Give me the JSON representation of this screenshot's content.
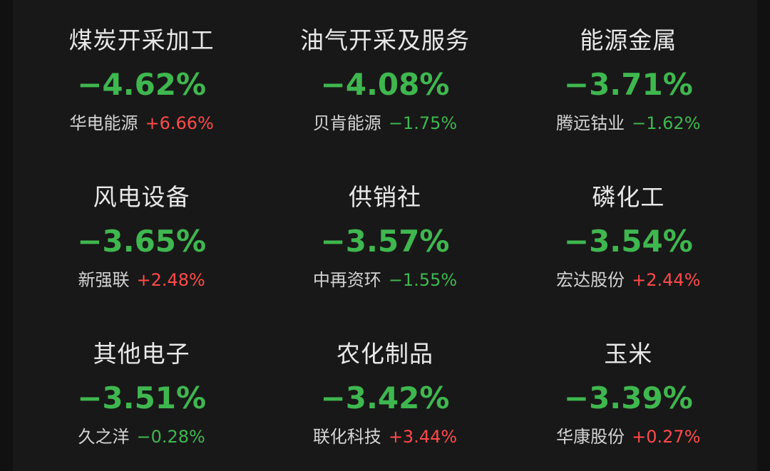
{
  "colors": {
    "background": "#181818",
    "rise": "#ff4a4a",
    "fall": "#3fb74f",
    "text": "#e8e8e8"
  },
  "sectors": [
    {
      "name": "煤炭开采加工",
      "change": "−4.62%",
      "stock": "华电能源",
      "stock_change": "+6.66%",
      "stock_dir": "up"
    },
    {
      "name": "油气开采及服务",
      "change": "−4.08%",
      "stock": "贝肯能源",
      "stock_change": "−1.75%",
      "stock_dir": "down"
    },
    {
      "name": "能源金属",
      "change": "−3.71%",
      "stock": "腾远钴业",
      "stock_change": "−1.62%",
      "stock_dir": "down"
    },
    {
      "name": "风电设备",
      "change": "−3.65%",
      "stock": "新强联",
      "stock_change": "+2.48%",
      "stock_dir": "up"
    },
    {
      "name": "供销社",
      "change": "−3.57%",
      "stock": "中再资环",
      "stock_change": "−1.55%",
      "stock_dir": "down"
    },
    {
      "name": "磷化工",
      "change": "−3.54%",
      "stock": "宏达股份",
      "stock_change": "+2.44%",
      "stock_dir": "up"
    },
    {
      "name": "其他电子",
      "change": "−3.51%",
      "stock": "久之洋",
      "stock_change": "−0.28%",
      "stock_dir": "down"
    },
    {
      "name": "农化制品",
      "change": "−3.42%",
      "stock": "联化科技",
      "stock_change": "+3.44%",
      "stock_dir": "up"
    },
    {
      "name": "玉米",
      "change": "−3.39%",
      "stock": "华康股份",
      "stock_change": "+0.27%",
      "stock_dir": "up"
    }
  ]
}
